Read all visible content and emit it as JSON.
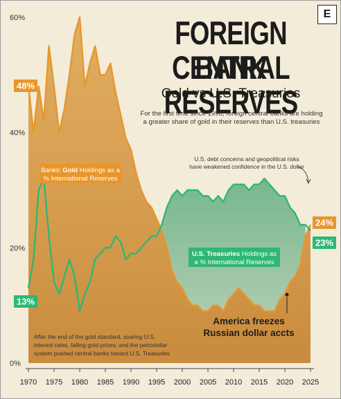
{
  "header": {
    "title_line1": "FOREIGN CENTRAL",
    "title_line2": "BANK RESERVES",
    "subtitle": "Gold vs U.S. Treasuries",
    "description": "For the first time since 1996, foreign central banks are holding a greater share of gold in their reserves than U.S. treasuries",
    "logo": "E"
  },
  "colors": {
    "gold": "#e8962a",
    "gold_fill": "#d7a55a",
    "treasury": "#2fb774",
    "treasury_fill": "#8fbf9e",
    "background": "#f3ecd9"
  },
  "chart_data": {
    "type": "line",
    "x_range": [
      1970,
      2025
    ],
    "y_range": [
      0,
      60
    ],
    "y_unit": "%",
    "x_tick_labels": [
      "1970",
      "1975",
      "1980",
      "1985",
      "1990",
      "1995",
      "2000",
      "2005",
      "2010",
      "2015",
      "2020",
      "2025"
    ],
    "y_tick_labels": [
      "0%",
      "20%",
      "40%",
      "60%"
    ],
    "grid": false,
    "series": [
      {
        "name": "Banks' Gold Holdings as a % International Reserves",
        "color": "#e8962a",
        "x": [
          1970,
          1971,
          1972,
          1973,
          1974,
          1975,
          1976,
          1977,
          1978,
          1979,
          1980,
          1981,
          1982,
          1983,
          1984,
          1985,
          1986,
          1987,
          1988,
          1989,
          1990,
          1991,
          1992,
          1993,
          1994,
          1995,
          1996,
          1997,
          1998,
          1999,
          2000,
          2001,
          2002,
          2003,
          2004,
          2005,
          2006,
          2007,
          2008,
          2009,
          2010,
          2011,
          2012,
          2013,
          2014,
          2015,
          2016,
          2017,
          2018,
          2019,
          2020,
          2021,
          2022,
          2023,
          2024,
          2025
        ],
        "values": [
          48,
          40,
          48,
          42,
          55,
          48,
          40,
          44,
          50,
          57,
          60,
          48,
          52,
          55,
          50,
          50,
          52,
          47,
          43,
          39,
          37,
          33,
          30,
          28,
          27,
          25,
          23,
          20,
          16,
          14,
          13,
          11,
          10,
          10,
          9,
          9,
          10,
          10,
          9,
          11,
          12,
          13,
          12,
          11,
          10,
          10,
          9,
          9,
          9,
          11,
          12,
          14,
          15,
          17,
          22,
          24
        ]
      },
      {
        "name": "U.S. Treasuries Holdings as a % International Reserves",
        "color": "#2fb774",
        "x": [
          1970,
          1971,
          1972,
          1973,
          1974,
          1975,
          1976,
          1977,
          1978,
          1979,
          1980,
          1981,
          1982,
          1983,
          1984,
          1985,
          1986,
          1987,
          1988,
          1989,
          1990,
          1991,
          1992,
          1993,
          1994,
          1995,
          1996,
          1997,
          1998,
          1999,
          2000,
          2001,
          2002,
          2003,
          2004,
          2005,
          2006,
          2007,
          2008,
          2009,
          2010,
          2011,
          2012,
          2013,
          2014,
          2015,
          2016,
          2017,
          2018,
          2019,
          2020,
          2021,
          2022,
          2023,
          2024,
          2025
        ],
        "values": [
          13,
          18,
          30,
          32,
          22,
          14,
          12,
          15,
          18,
          15,
          9,
          12,
          14,
          18,
          19,
          20,
          20,
          22,
          21,
          18,
          19,
          19,
          20,
          21,
          22,
          22,
          24,
          27,
          29,
          30,
          29,
          30,
          30,
          30,
          29,
          29,
          28,
          29,
          28,
          30,
          31,
          31,
          31,
          30,
          31,
          31,
          32,
          31,
          30,
          29,
          29,
          27,
          26,
          24,
          24,
          23
        ]
      }
    ],
    "end_labels": {
      "gold": "24%",
      "treasury": "23%"
    },
    "start_labels": {
      "gold": "48%",
      "treasury": "13%"
    },
    "annotations": {
      "gold_label_prefix": "Banks' ",
      "gold_label_bold": "Gold",
      "gold_label_rest": " Holdings as a",
      "gold_label_line2": "% International Reserves",
      "treasury_label_bold": "U.S. Treasuries",
      "treasury_label_rest": " Holdings as",
      "treasury_label_line2": "a % International Reserves",
      "note_top_line1": "U.S. debt concerns and geopolitical risks",
      "note_top_line2": "have weakened confidence in the U.S. dollar",
      "note_bottom_line1": "After the end of the gold standard, soaring U.S.",
      "note_bottom_line2": "interest rates, falling gold prices, and the petrodollar",
      "note_bottom_line3": "system pushed central banks toward U.S. Treasuries",
      "event_line1": "America freezes",
      "event_line2": "Russian dollar accts"
    }
  }
}
